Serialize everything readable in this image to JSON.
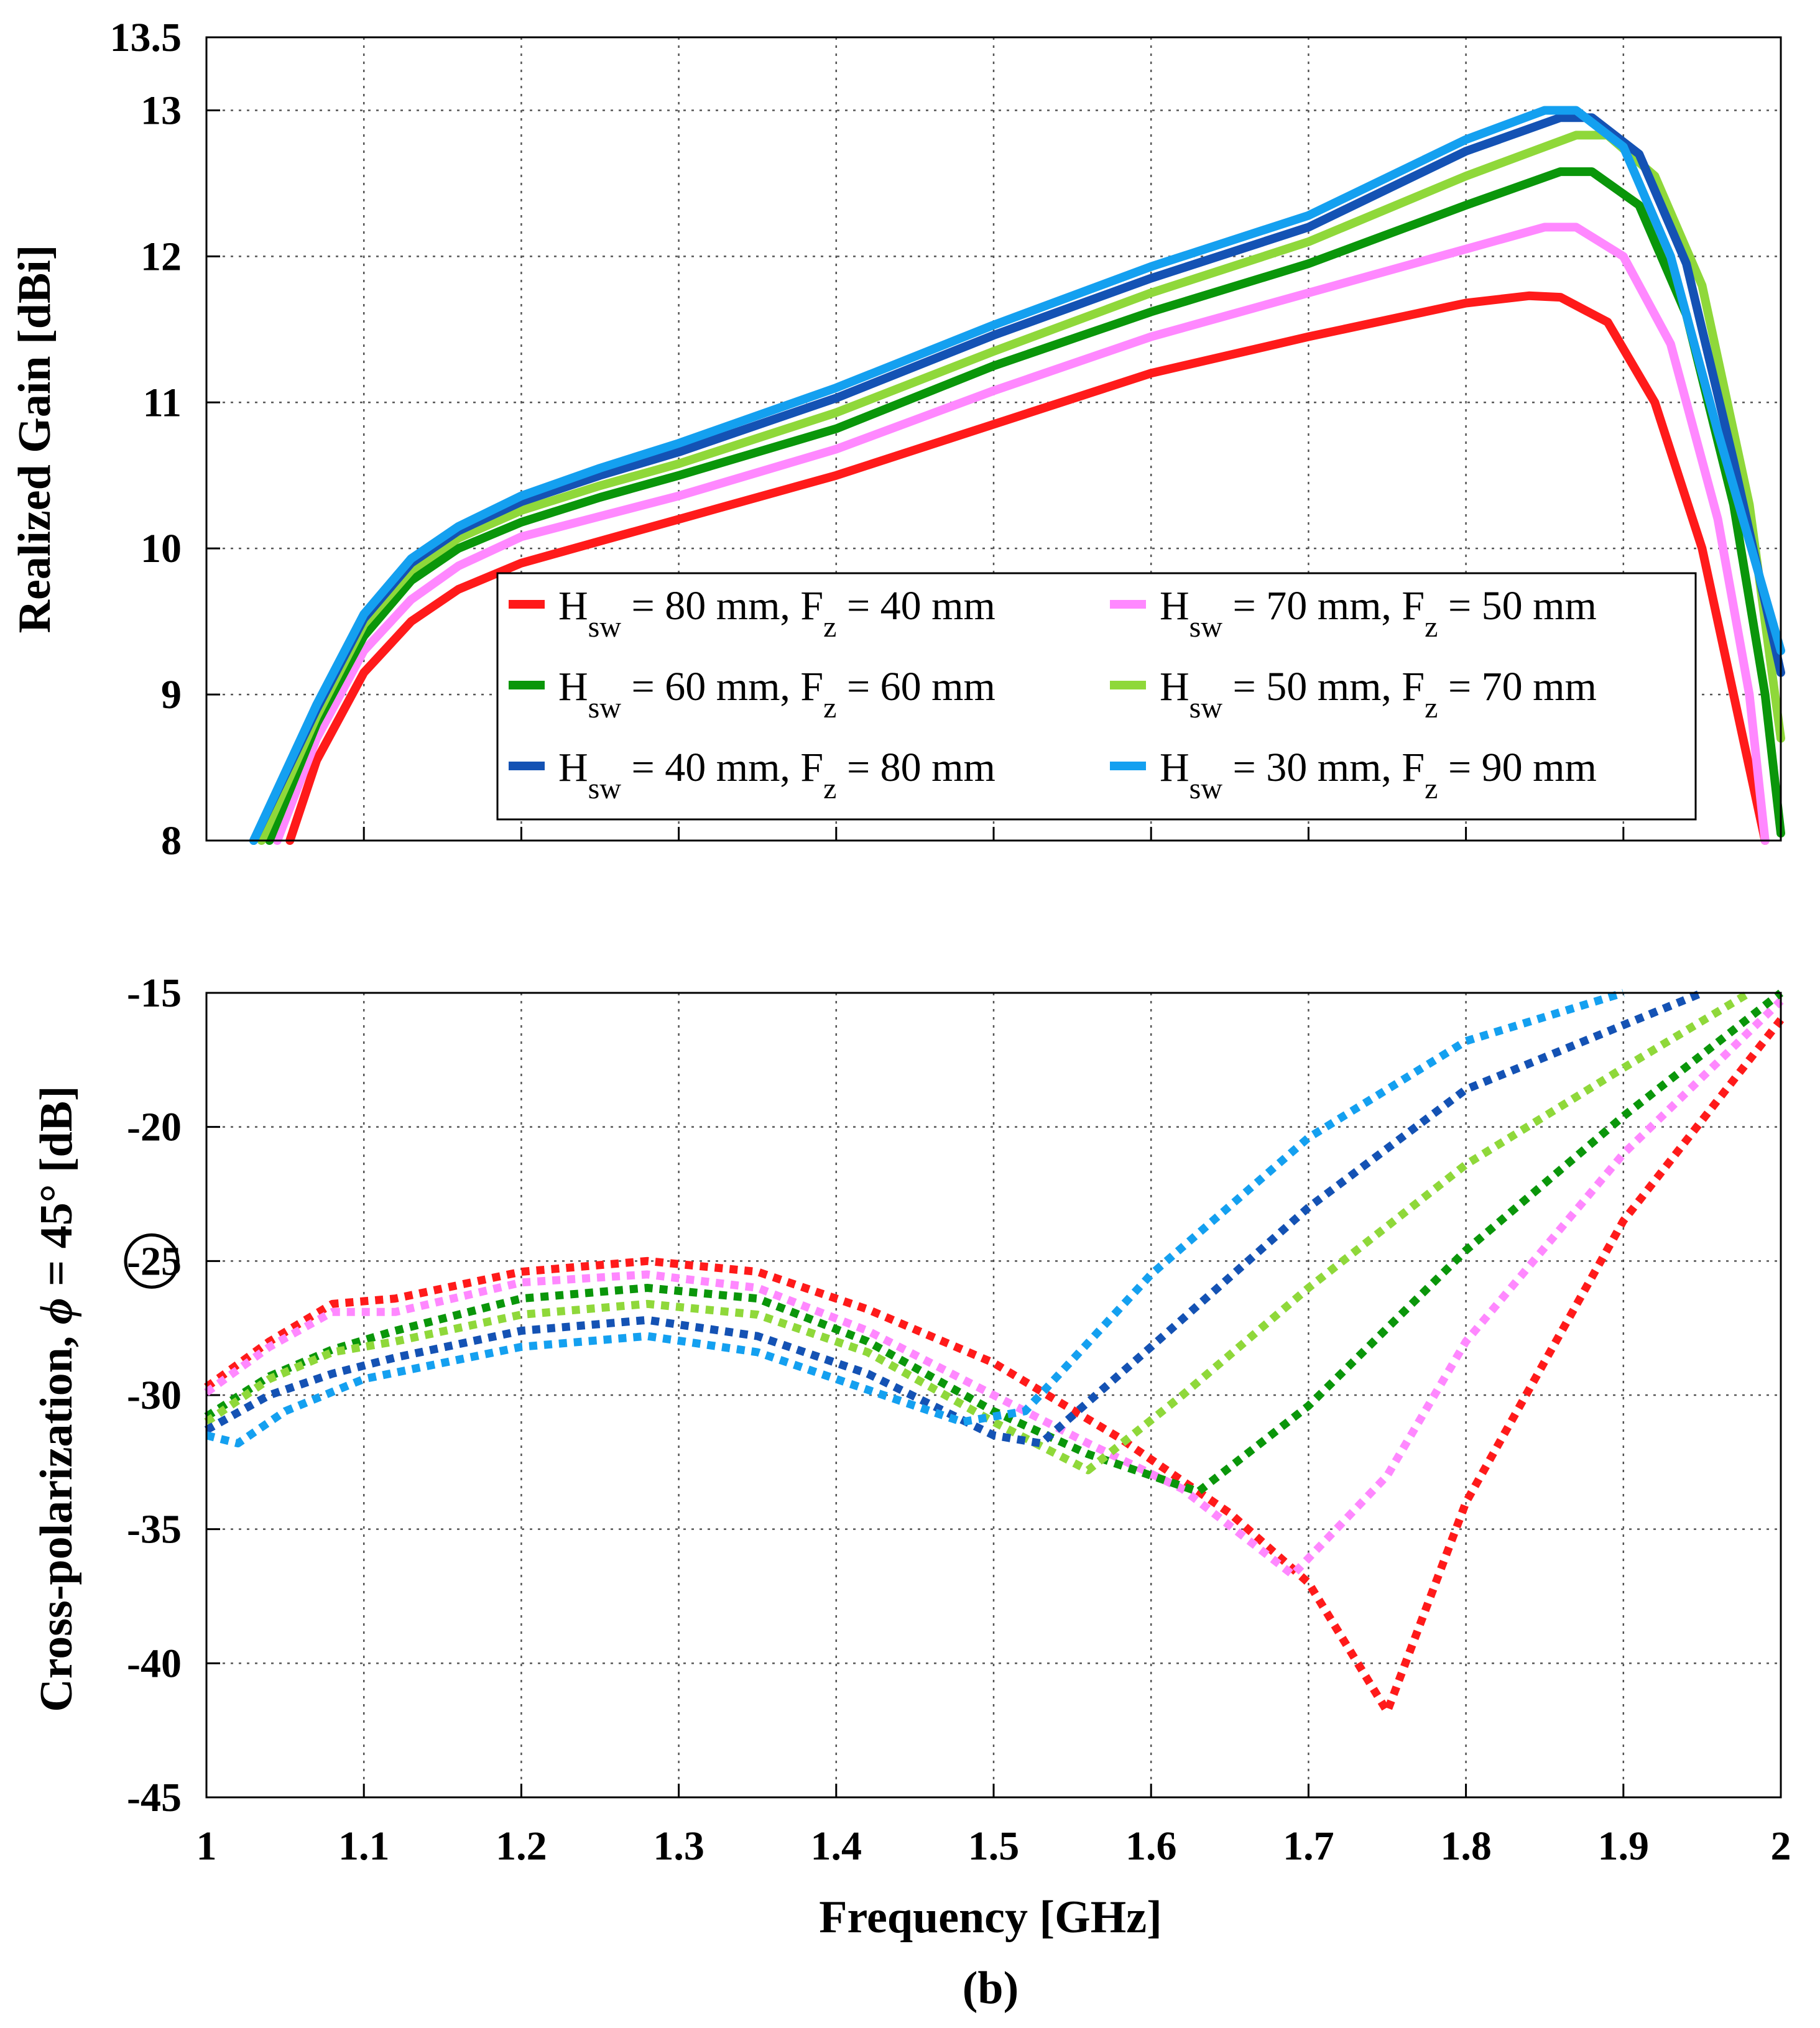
{
  "figure_label": "(b)",
  "colors": {
    "red": "#ff1a1a",
    "pink": "#ff88ff",
    "green": "#0a960a",
    "lightgreen": "#8fd83a",
    "darkblue": "#1452b4",
    "lightblue": "#14a0f0"
  },
  "chart_data": [
    {
      "type": "line",
      "title": "",
      "xlabel": "",
      "ylabel": "Realized Gain [dBi]",
      "xlim": [
        1,
        2
      ],
      "ylim": [
        8,
        13.5
      ],
      "grid": true,
      "yticks": [
        8,
        9,
        10,
        11,
        12,
        13,
        13.5
      ],
      "ytick_labels": [
        "8",
        "9",
        "10",
        "11",
        "12",
        "13",
        "13.5"
      ],
      "xticks": [
        1,
        1.1,
        1.2,
        1.3,
        1.4,
        1.5,
        1.6,
        1.7,
        1.8,
        1.9,
        2
      ],
      "legend": {
        "placement": "bottom-right",
        "entries": [
          {
            "H": "H",
            "sub_sw": "sw",
            "mid": " = 80 mm, F",
            "sub_z": "z",
            "tail": " = 40 mm",
            "color": "red"
          },
          {
            "H": "H",
            "sub_sw": "sw",
            "mid": " = 70 mm, F",
            "sub_z": "z",
            "tail": " = 50 mm",
            "color": "pink"
          },
          {
            "H": "H",
            "sub_sw": "sw",
            "mid": " = 60 mm, F",
            "sub_z": "z",
            "tail": " = 60 mm",
            "color": "green"
          },
          {
            "H": "H",
            "sub_sw": "sw",
            "mid": " = 50 mm, F",
            "sub_z": "z",
            "tail": " = 70 mm",
            "color": "lightgreen"
          },
          {
            "H": "H",
            "sub_sw": "sw",
            "mid": " = 40 mm, F",
            "sub_z": "z",
            "tail": " = 80 mm",
            "color": "darkblue"
          },
          {
            "H": "H",
            "sub_sw": "sw",
            "mid": " = 30 mm, F",
            "sub_z": "z",
            "tail": " = 90 mm",
            "color": "lightblue"
          }
        ]
      },
      "series": [
        {
          "name": "Hsw = 80 mm, Fz = 40 mm",
          "color": "red",
          "x": [
            1.053,
            1.07,
            1.1,
            1.13,
            1.16,
            1.2,
            1.25,
            1.3,
            1.4,
            1.5,
            1.6,
            1.7,
            1.8,
            1.84,
            1.86,
            1.89,
            1.92,
            1.95,
            1.97,
            1.99
          ],
          "y": [
            8.0,
            8.55,
            9.15,
            9.5,
            9.72,
            9.9,
            10.05,
            10.2,
            10.5,
            10.85,
            11.2,
            11.45,
            11.68,
            11.73,
            11.72,
            11.55,
            11.0,
            10.0,
            9.0,
            8.0
          ]
        },
        {
          "name": "Hsw = 70 mm, Fz = 50 mm",
          "color": "pink",
          "x": [
            1.045,
            1.07,
            1.1,
            1.13,
            1.16,
            1.2,
            1.25,
            1.3,
            1.4,
            1.5,
            1.6,
            1.7,
            1.8,
            1.85,
            1.87,
            1.9,
            1.93,
            1.96,
            1.98,
            1.99
          ],
          "y": [
            8.0,
            8.7,
            9.3,
            9.65,
            9.88,
            10.08,
            10.22,
            10.36,
            10.68,
            11.08,
            11.45,
            11.75,
            12.05,
            12.2,
            12.2,
            12.0,
            11.4,
            10.2,
            9.0,
            8.0
          ]
        },
        {
          "name": "Hsw = 60 mm, Fz = 60 mm",
          "color": "green",
          "x": [
            1.04,
            1.07,
            1.1,
            1.13,
            1.16,
            1.2,
            1.25,
            1.3,
            1.4,
            1.5,
            1.6,
            1.7,
            1.8,
            1.86,
            1.88,
            1.91,
            1.94,
            1.97,
            1.99,
            2.0
          ],
          "y": [
            8.0,
            8.8,
            9.4,
            9.78,
            10.0,
            10.18,
            10.35,
            10.5,
            10.82,
            11.25,
            11.62,
            11.95,
            12.35,
            12.58,
            12.58,
            12.35,
            11.6,
            10.3,
            9.0,
            8.05
          ]
        },
        {
          "name": "Hsw = 50 mm, Fz = 70 mm",
          "color": "lightgreen",
          "x": [
            1.035,
            1.07,
            1.1,
            1.13,
            1.16,
            1.2,
            1.25,
            1.3,
            1.4,
            1.5,
            1.6,
            1.7,
            1.8,
            1.87,
            1.89,
            1.92,
            1.95,
            1.98,
            2.0
          ],
          "y": [
            8.0,
            8.85,
            9.48,
            9.85,
            10.07,
            10.26,
            10.43,
            10.58,
            10.93,
            11.35,
            11.75,
            12.1,
            12.55,
            12.83,
            12.83,
            12.55,
            11.8,
            10.3,
            8.7
          ]
        },
        {
          "name": "Hsw = 40 mm, Fz = 80 mm",
          "color": "darkblue",
          "x": [
            1.03,
            1.07,
            1.1,
            1.13,
            1.16,
            1.2,
            1.25,
            1.3,
            1.4,
            1.5,
            1.6,
            1.7,
            1.8,
            1.86,
            1.88,
            1.91,
            1.94,
            1.97,
            2.0
          ],
          "y": [
            8.0,
            8.9,
            9.52,
            9.9,
            10.12,
            10.32,
            10.5,
            10.66,
            11.03,
            11.46,
            11.85,
            12.2,
            12.72,
            12.95,
            12.95,
            12.7,
            11.95,
            10.6,
            9.15
          ]
        },
        {
          "name": "Hsw = 30 mm, Fz = 90 mm",
          "color": "lightblue",
          "x": [
            1.03,
            1.07,
            1.1,
            1.13,
            1.16,
            1.2,
            1.25,
            1.3,
            1.4,
            1.5,
            1.6,
            1.7,
            1.8,
            1.85,
            1.87,
            1.9,
            1.93,
            1.96,
            2.0
          ],
          "y": [
            8.0,
            8.93,
            9.55,
            9.93,
            10.15,
            10.36,
            10.55,
            10.72,
            11.1,
            11.53,
            11.93,
            12.28,
            12.8,
            13.0,
            13.0,
            12.75,
            12.0,
            10.8,
            9.3
          ]
        }
      ]
    },
    {
      "type": "line",
      "title": "",
      "xlabel": "Frequency [GHz]",
      "ylabel_parts": {
        "before": "Cross-polarization, ",
        "symbol": "ϕ",
        "after": " = 45° [dB]"
      },
      "xlim": [
        1,
        2
      ],
      "ylim": [
        -45,
        -15
      ],
      "grid": true,
      "yticks": [
        -45,
        -40,
        -35,
        -30,
        -25,
        -20,
        -15
      ],
      "ytick_labels": [
        "-45",
        "-40",
        "-35",
        "-30",
        "-25",
        "-20",
        "-15"
      ],
      "highlighted_tick": "-25",
      "xticks": [
        1,
        1.1,
        1.2,
        1.3,
        1.4,
        1.5,
        1.6,
        1.7,
        1.8,
        1.9,
        2
      ],
      "xtick_labels": [
        "1",
        "1.1",
        "1.2",
        "1.3",
        "1.4",
        "1.5",
        "1.6",
        "1.7",
        "1.8",
        "1.9",
        "2"
      ],
      "line_style": "dotted",
      "series": [
        {
          "name": "Hsw = 80 mm, Fz = 40 mm",
          "color": "red",
          "x": [
            1.0,
            1.04,
            1.08,
            1.12,
            1.2,
            1.28,
            1.35,
            1.42,
            1.5,
            1.58,
            1.65,
            1.7,
            1.75,
            1.8,
            1.9,
            2.0
          ],
          "y": [
            -29.7,
            -28.0,
            -26.6,
            -26.4,
            -25.4,
            -25.0,
            -25.4,
            -26.8,
            -28.8,
            -31.6,
            -34.4,
            -37.0,
            -41.8,
            -34.0,
            -23.5,
            -16.0
          ]
        },
        {
          "name": "Hsw = 70 mm, Fz = 50 mm",
          "color": "pink",
          "x": [
            1.0,
            1.04,
            1.08,
            1.12,
            1.2,
            1.28,
            1.35,
            1.42,
            1.5,
            1.56,
            1.62,
            1.69,
            1.75,
            1.8,
            1.9,
            2.0
          ],
          "y": [
            -29.9,
            -28.2,
            -26.9,
            -26.9,
            -25.8,
            -25.5,
            -26.0,
            -27.6,
            -30.0,
            -31.8,
            -33.5,
            -36.7,
            -33.0,
            -28.0,
            -21.0,
            -15.3
          ]
        },
        {
          "name": "Hsw = 60 mm, Fz = 60 mm",
          "color": "green",
          "x": [
            1.0,
            1.04,
            1.08,
            1.12,
            1.2,
            1.28,
            1.35,
            1.42,
            1.5,
            1.56,
            1.63,
            1.7,
            1.8,
            1.9,
            2.0
          ],
          "y": [
            -30.8,
            -29.3,
            -28.3,
            -27.6,
            -26.4,
            -26.0,
            -26.4,
            -28.0,
            -30.6,
            -32.2,
            -33.6,
            -30.4,
            -24.6,
            -19.6,
            -15.0
          ]
        },
        {
          "name": "Hsw = 50 mm, Fz = 70 mm",
          "color": "lightgreen",
          "x": [
            1.0,
            1.04,
            1.08,
            1.12,
            1.2,
            1.28,
            1.35,
            1.42,
            1.5,
            1.56,
            1.62,
            1.7,
            1.8,
            1.9,
            1.98
          ],
          "y": [
            -31.0,
            -29.4,
            -28.4,
            -28.0,
            -27.0,
            -26.6,
            -27.0,
            -28.4,
            -31.0,
            -32.8,
            -30.0,
            -26.0,
            -21.4,
            -17.8,
            -15.0
          ]
        },
        {
          "name": "Hsw = 40 mm, Fz = 80 mm",
          "color": "darkblue",
          "x": [
            1.0,
            1.04,
            1.08,
            1.12,
            1.2,
            1.28,
            1.35,
            1.42,
            1.5,
            1.53,
            1.6,
            1.7,
            1.8,
            1.9,
            1.95
          ],
          "y": [
            -31.3,
            -30.0,
            -29.2,
            -28.6,
            -27.6,
            -27.2,
            -27.8,
            -29.2,
            -31.5,
            -31.8,
            -28.2,
            -23.0,
            -18.6,
            -16.2,
            -15.0
          ]
        },
        {
          "name": "Hsw = 30 mm, Fz = 90 mm",
          "color": "lightblue",
          "x": [
            1.0,
            1.02,
            1.05,
            1.1,
            1.2,
            1.28,
            1.35,
            1.42,
            1.48,
            1.52,
            1.6,
            1.7,
            1.8,
            1.9
          ],
          "y": [
            -31.5,
            -31.8,
            -30.6,
            -29.4,
            -28.2,
            -27.8,
            -28.4,
            -29.8,
            -31.0,
            -30.6,
            -25.5,
            -20.4,
            -16.8,
            -15.0
          ]
        }
      ]
    }
  ]
}
